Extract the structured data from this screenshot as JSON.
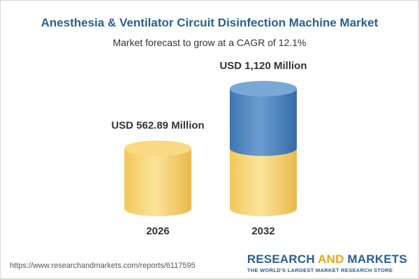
{
  "header": {
    "title": "Anesthesia & Ventilator Circuit Disinfection Machine Market",
    "subtitle": "Market forecast to grow at a CAGR of 12.1%"
  },
  "chart_data": {
    "type": "bar",
    "categories": [
      "2026",
      "2032"
    ],
    "values": [
      562.89,
      1120
    ],
    "data_labels": [
      "USD 562.89 Million",
      "USD 1,120 Million"
    ],
    "unit": "USD Million",
    "colors": {
      "base": "#f6ce6a",
      "growth": "#4d83bb"
    }
  },
  "footer": {
    "source_url": "https://www.researchandmarkets.com/reports/6117595",
    "logo_word1": "RESEARCH",
    "logo_word2": "AND",
    "logo_word3": "MARKETS",
    "logo_tagline": "THE WORLD'S LARGEST MARKET RESEARCH STORE"
  }
}
